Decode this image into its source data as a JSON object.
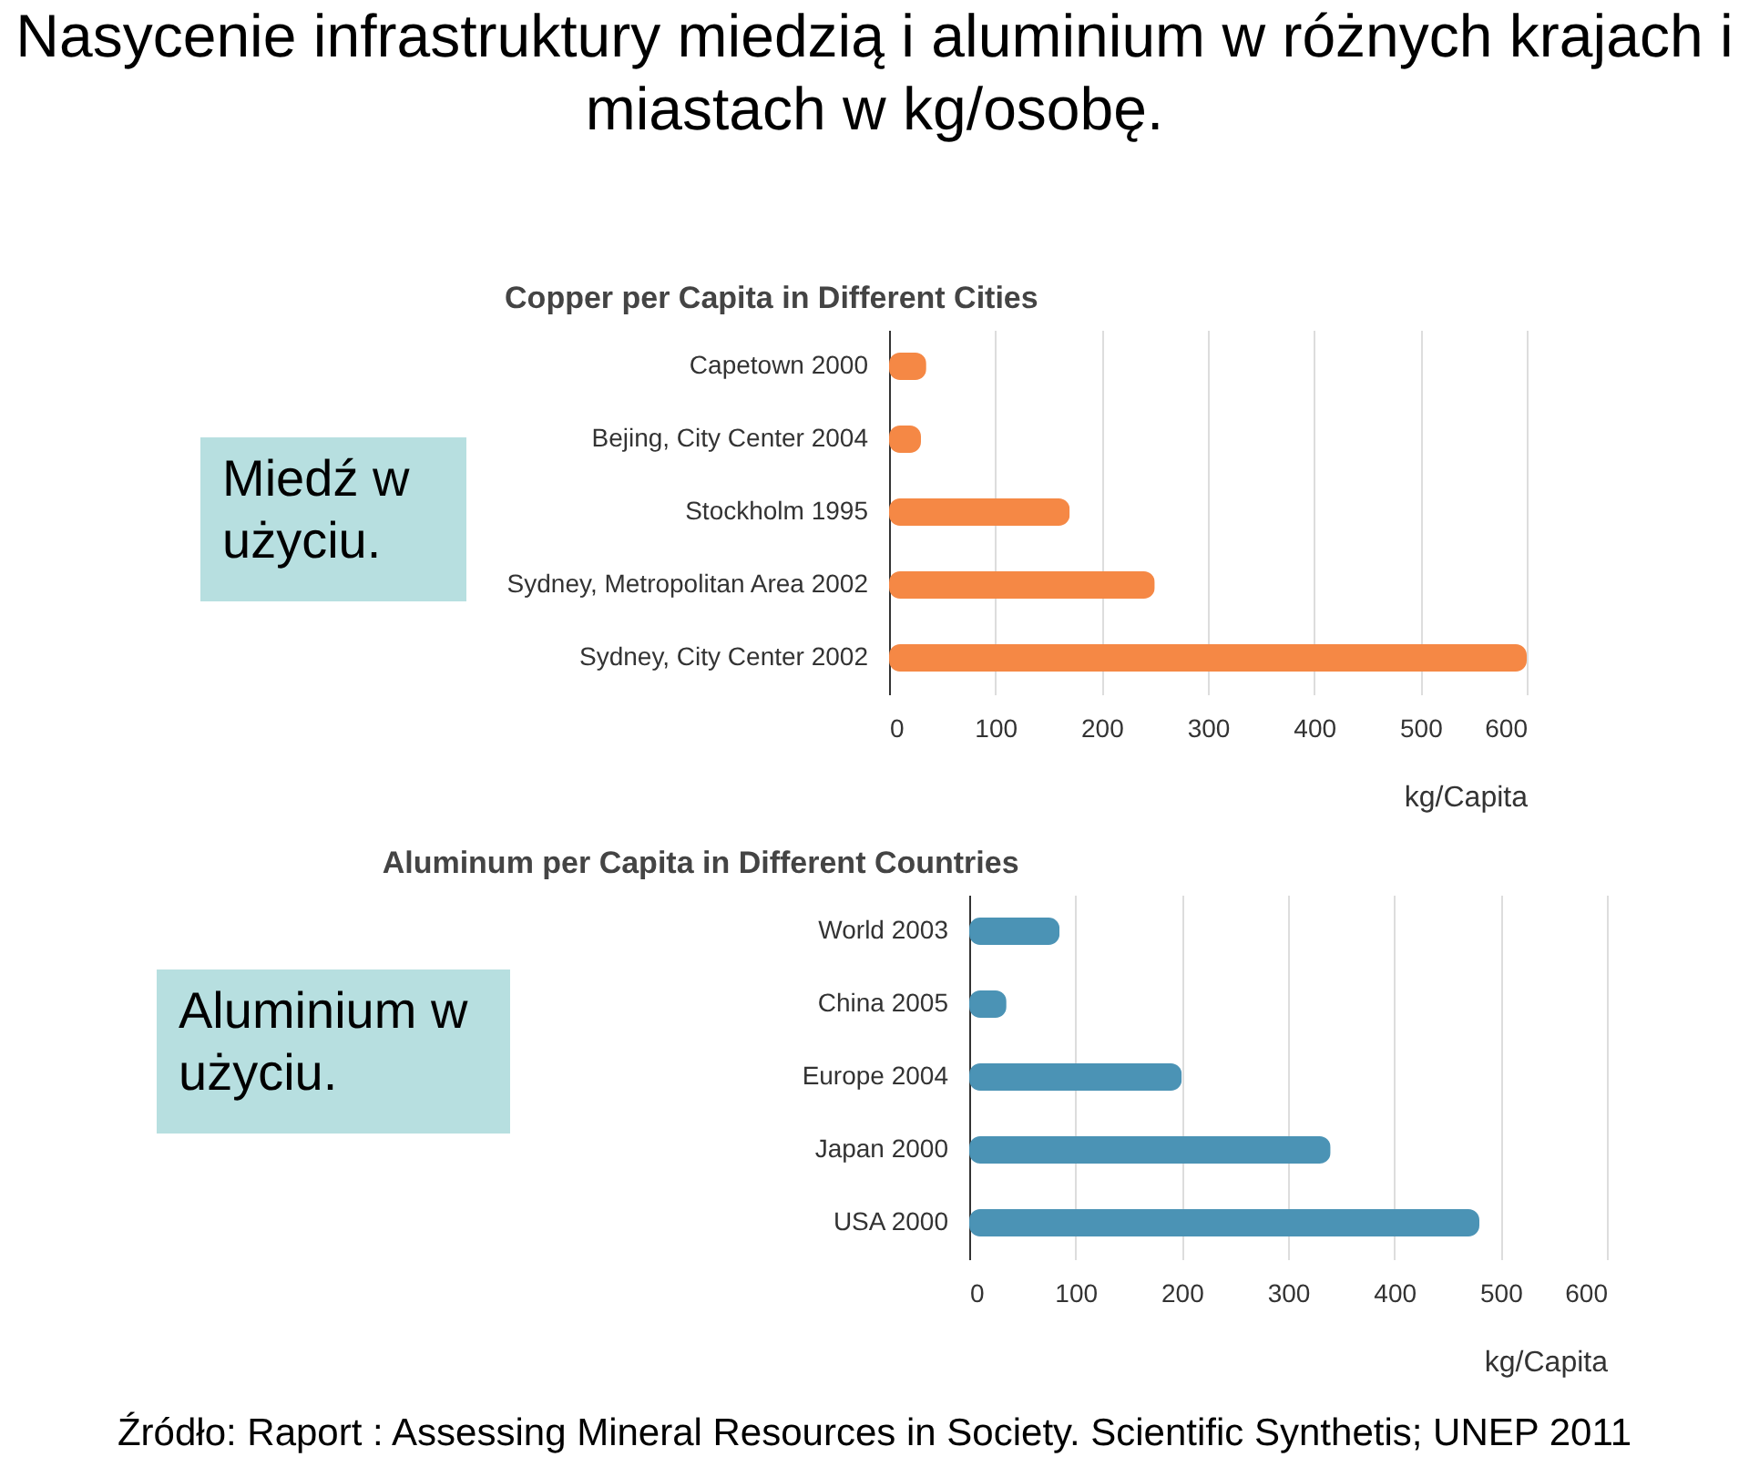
{
  "chart_data": [
    {
      "type": "bar",
      "orientation": "horizontal",
      "title": "Nasycenie infrastruktury miedzią i aluminium w różnych krajach i miastach w kg/osobę.",
      "subtitle": "Copper per Capita in Different Cities",
      "xlabel": "kg/Capita",
      "annotations": [
        "Miedź w użyciu."
      ],
      "categories": [
        "Capetown 2000",
        "Bejing, City Center 2004",
        "Stockholm 1995",
        "Sydney, Metropolitan Area 2002",
        "Sydney, City Center 2002"
      ],
      "values": [
        35,
        30,
        170,
        250,
        600
      ],
      "color": "#f58845",
      "xlim": [
        0,
        600
      ],
      "xticks": [
        0,
        100,
        200,
        300,
        400,
        500,
        600
      ],
      "grid": "x"
    },
    {
      "type": "bar",
      "orientation": "horizontal",
      "title": "Aluminum per Capita in Different Countries",
      "xlabel": "kg/Capita",
      "annotations": [
        "Aluminium w użyciu.",
        "Źródło: Raport : Assessing Mineral  Resources in Society. Scientific Synthetis; UNEP 2011"
      ],
      "categories": [
        "World 2003",
        "China 2005",
        "Europe 2004",
        "Japan 2000",
        "USA 2000"
      ],
      "values": [
        85,
        35,
        200,
        340,
        480
      ],
      "color": "#4b93b5",
      "xlim": [
        0,
        600
      ],
      "xticks": [
        0,
        100,
        200,
        300,
        400,
        500,
        600
      ],
      "grid": "x"
    }
  ]
}
